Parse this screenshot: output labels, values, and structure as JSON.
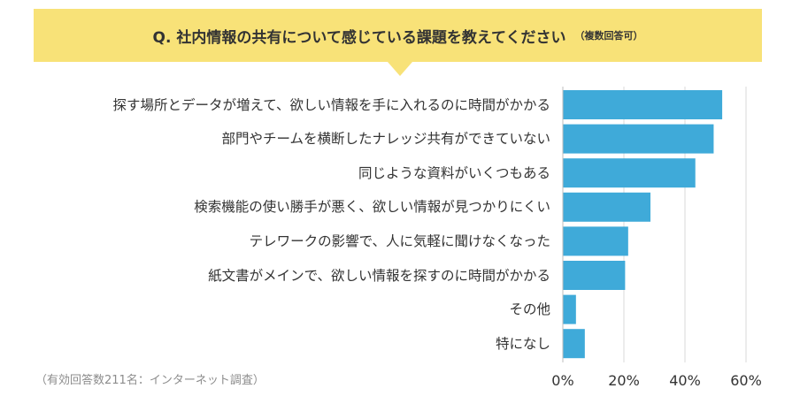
{
  "header": {
    "question": "Q. 社内情報の共有について感じている課題を教えてください",
    "note": "（複数回答可）"
  },
  "footnote": "（有効回答数211名：インターネット調査）",
  "colors": {
    "banner": "#f8e278",
    "bar": "#3faad9",
    "grid": "#d8d8d8"
  },
  "chart_data": {
    "type": "bar",
    "orientation": "horizontal",
    "categories": [
      "探す場所とデータが増えて、欲しい情報を手に入れるのに時間がかかる",
      "部門やチームを横断したナレッジ共有ができていない",
      "同じような資料がいくつもある",
      "検索機能の使い勝手が悪く、欲しい情報が見つかりにくい",
      "テレワークの影響で、人に気軽に聞けなくなった",
      "紙文書がメインで、欲しい情報を探すのに時間がかかる",
      "その他",
      "特になし"
    ],
    "values": [
      52.2,
      49.4,
      43.4,
      28.7,
      21.4,
      20.4,
      4.3,
      7.2
    ],
    "xlim": [
      0,
      60
    ],
    "xticks": [
      "0%",
      "20%",
      "40%",
      "60%"
    ],
    "grid": true
  }
}
